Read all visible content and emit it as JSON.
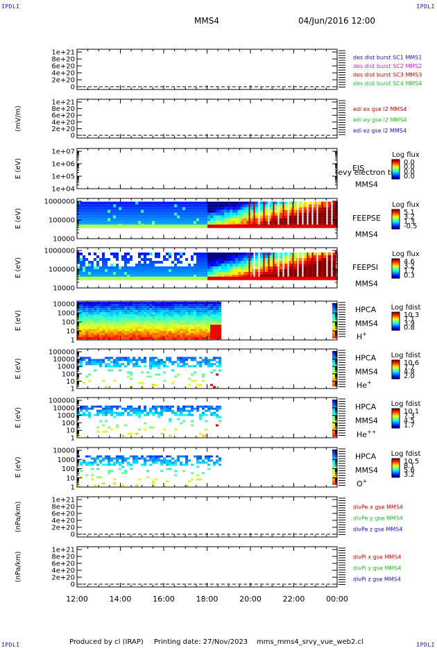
{
  "header": {
    "corner_label": "IPDLI",
    "spacecraft": "MMS4",
    "date_time": "04/Jun/2016 12:00"
  },
  "footer": {
    "producer": "Produced by cl (IRAP)",
    "printing_date": "Printing date: 27/Nov/2023",
    "script_name": "mms_mms4_srvy_vue_web2.cl"
  },
  "colors": {
    "blue": "#1010c8",
    "magenta": "#d020d0",
    "red": "#d00000",
    "green": "#20c020"
  },
  "chart_data": [
    {
      "type": "line",
      "id": "des_dist",
      "ylabel": "",
      "yticks": [
        "1e+21",
        "8e+20",
        "6e+20",
        "4e+20",
        "2e+20",
        "0"
      ],
      "ylim": [
        0,
        1.1e+21
      ],
      "series": [
        {
          "name": "des dist burst SC1 MMS1",
          "color": "#1010c8",
          "values": []
        },
        {
          "name": "des dist burst SC2 MMS2",
          "color": "#d020d0",
          "values": []
        },
        {
          "name": "des dist burst SC3 MMS3",
          "color": "#d00000",
          "values": []
        },
        {
          "name": "des dist burst SC4 MMS4",
          "color": "#20c020",
          "values": []
        }
      ]
    },
    {
      "type": "line",
      "id": "edi_e",
      "ylabel": "(mV/m)",
      "yticks": [
        "1e+21",
        "8e+20",
        "6e+20",
        "4e+20",
        "2e+20",
        "0"
      ],
      "ylim": [
        0,
        1.1e+21
      ],
      "series": [
        {
          "name": "edi ex gse l2 MMS4",
          "color": "#d00000",
          "values": []
        },
        {
          "name": "edi ey gse l2 MMS4",
          "color": "#20c020",
          "values": []
        },
        {
          "name": "edi ez gse l2 MMS4",
          "color": "#1010c8",
          "values": []
        }
      ]
    },
    {
      "type": "heatmap",
      "id": "eis",
      "ylabel": "E (eV)",
      "yticks": [
        "1e+07",
        "1e+06",
        "1e+05",
        "1e+04"
      ],
      "scale": "log",
      "labels": [
        "EIS",
        "MMS4"
      ],
      "overlay_text": "(evy electron to",
      "colorbar": {
        "title": "Log flux",
        "ticks": [
          "0.0",
          "0.0",
          "0.0",
          "0.0"
        ]
      }
    },
    {
      "type": "heatmap",
      "id": "feepse",
      "ylabel": "E (eV)",
      "yticks": [
        "1000000",
        "100000",
        "10000"
      ],
      "scale": "log",
      "labels": [
        "FEEPSE",
        "MMS4"
      ],
      "colorbar": {
        "title": "Log flux",
        "ticks": [
          "5.1",
          "3.2",
          "1.3",
          "-0.5"
        ]
      }
    },
    {
      "type": "heatmap",
      "id": "feepsi",
      "ylabel": "E (eV)",
      "yticks": [
        "1000000",
        "100000",
        "10000"
      ],
      "scale": "log",
      "labels": [
        "FEEPSI",
        "MMS4"
      ],
      "colorbar": {
        "title": "Log flux",
        "ticks": [
          "4.6",
          "3.2",
          "1.7",
          "0.3"
        ]
      }
    },
    {
      "type": "heatmap",
      "id": "hpca_h",
      "ylabel": "E (eV)",
      "yticks": [
        "10000",
        "1000",
        "100",
        "10",
        "1"
      ],
      "scale": "log",
      "labels": [
        "HPCA",
        "MMS4"
      ],
      "species": {
        "base": "H",
        "sup": "+"
      },
      "colorbar": {
        "title": "Log fdist",
        "ticks": [
          "10.3",
          "7.1",
          "3.9",
          "0.8"
        ]
      }
    },
    {
      "type": "heatmap",
      "id": "hpca_he",
      "ylabel": "E (eV)",
      "yticks": [
        "100000",
        "10000",
        "1000",
        "100",
        "10",
        "1"
      ],
      "scale": "log",
      "labels": [
        "HPCA",
        "MMS4"
      ],
      "species": {
        "base": "He",
        "sup": "+"
      },
      "colorbar": {
        "title": "Log fdist",
        "ticks": [
          "10.6",
          "7.7",
          "4.8",
          "2.0"
        ]
      }
    },
    {
      "type": "heatmap",
      "id": "hpca_hepp",
      "ylabel": "E (eV)",
      "yticks": [
        "100000",
        "10000",
        "1000",
        "100",
        "10",
        "1"
      ],
      "scale": "log",
      "labels": [
        "HPCA",
        "MMS4"
      ],
      "species": {
        "base": "He",
        "sup": "++"
      },
      "colorbar": {
        "title": "Log fdist",
        "ticks": [
          "10.1",
          "7.3",
          "4.5",
          "1.7"
        ]
      }
    },
    {
      "type": "heatmap",
      "id": "hpca_o",
      "ylabel": "E (eV)",
      "yticks": [
        "10000",
        "1000",
        "100",
        "10",
        "1"
      ],
      "scale": "log",
      "labels": [
        "HPCA",
        "MMS4"
      ],
      "species": {
        "base": "O",
        "sup": "+"
      },
      "colorbar": {
        "title": "Log fdist",
        "ticks": [
          "10.5",
          "8.1",
          "5.6",
          "3.2"
        ]
      }
    },
    {
      "type": "line",
      "id": "divpe",
      "ylabel": "(nPa/km)",
      "yticks": [
        "1e+21",
        "8e+20",
        "6e+20",
        "4e+20",
        "2e+20",
        "0"
      ],
      "ylim": [
        0,
        1.1e+21
      ],
      "series": [
        {
          "name": "divPe x gse MMS4",
          "color": "#d00000",
          "values": []
        },
        {
          "name": "divPe y gse MMS4",
          "color": "#20c020",
          "values": []
        },
        {
          "name": "divPe z gse MMS4",
          "color": "#1010c8",
          "values": []
        }
      ]
    },
    {
      "type": "line",
      "id": "divpi",
      "ylabel": "(nPa/km)",
      "yticks": [
        "1e+21",
        "8e+20",
        "6e+20",
        "4e+20",
        "2e+20",
        "0"
      ],
      "ylim": [
        0,
        1.1e+21
      ],
      "series": [
        {
          "name": "divPi x gse MMS4",
          "color": "#d00000",
          "values": []
        },
        {
          "name": "divPi y gse MMS4",
          "color": "#20c020",
          "values": []
        },
        {
          "name": "divPi z gse MMS4",
          "color": "#1010c8",
          "values": []
        }
      ]
    }
  ],
  "x_axis": {
    "ticks": [
      "12:00",
      "14:00",
      "16:00",
      "18:00",
      "20:00",
      "22:00",
      "00:00"
    ],
    "range_hours": [
      12,
      24
    ]
  }
}
